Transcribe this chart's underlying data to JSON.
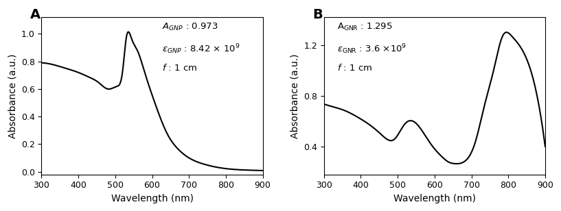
{
  "panel_A": {
    "label": "A",
    "xlabel": "Wavelength (nm)",
    "ylabel": "Absorbance (a.u.)",
    "xlim": [
      300,
      900
    ],
    "ylim": [
      -0.02,
      1.12
    ],
    "yticks": [
      0.0,
      0.2,
      0.4,
      0.6,
      0.8,
      1.0
    ],
    "gnp_ctrl_x": [
      300,
      330,
      360,
      400,
      430,
      455,
      480,
      505,
      520,
      530,
      545,
      560,
      580,
      610,
      640,
      670,
      700,
      740,
      780,
      830,
      900
    ],
    "gnp_ctrl_y": [
      0.79,
      0.778,
      0.755,
      0.72,
      0.685,
      0.647,
      0.6,
      0.62,
      0.73,
      0.973,
      0.96,
      0.88,
      0.72,
      0.48,
      0.28,
      0.165,
      0.1,
      0.055,
      0.03,
      0.015,
      0.008
    ]
  },
  "panel_B": {
    "label": "B",
    "xlabel": "Wavelength (nm)",
    "ylabel": "Absorbance (a.u.)",
    "xlim": [
      300,
      900
    ],
    "ylim": [
      0.18,
      1.42
    ],
    "yticks": [
      0.4,
      0.8,
      1.2
    ],
    "gnr_ctrl_x": [
      300,
      330,
      360,
      390,
      420,
      450,
      470,
      490,
      520,
      545,
      565,
      590,
      620,
      640,
      655,
      680,
      710,
      735,
      760,
      785,
      810,
      850,
      900
    ],
    "gnr_ctrl_y": [
      0.735,
      0.71,
      0.68,
      0.635,
      0.58,
      0.51,
      0.46,
      0.455,
      0.58,
      0.595,
      0.53,
      0.42,
      0.32,
      0.275,
      0.265,
      0.28,
      0.43,
      0.72,
      1.0,
      1.275,
      1.27,
      1.09,
      0.4
    ]
  },
  "line_color": "#000000",
  "line_width": 1.5,
  "background_color": "#ffffff",
  "tick_fontsize": 9,
  "label_fontsize": 10,
  "annot_fontsize": 9.5,
  "panel_label_fontsize": 14
}
